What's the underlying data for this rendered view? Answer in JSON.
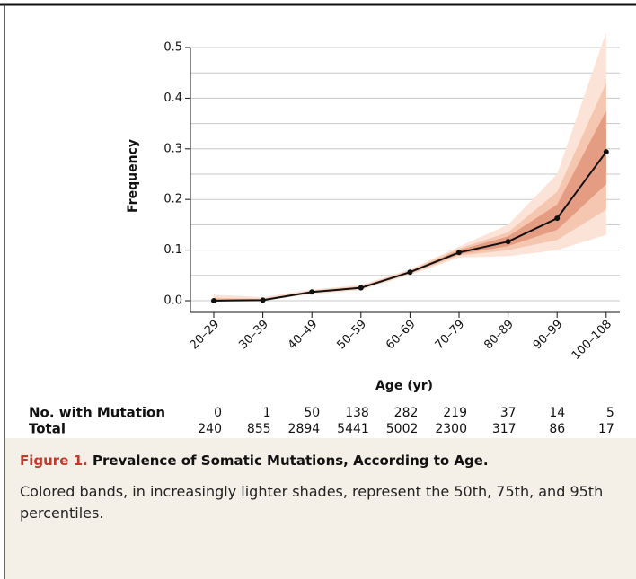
{
  "chart_data": {
    "type": "line",
    "y_label": "Frequency",
    "x_label": "Age (yr)",
    "categories": [
      "20–29",
      "30–39",
      "40–49",
      "50–59",
      "60–69",
      "70–79",
      "80–89",
      "90–99",
      "100–108"
    ],
    "values": [
      0,
      0.0012,
      0.0173,
      0.0254,
      0.0564,
      0.0952,
      0.1167,
      0.1628,
      0.294
    ],
    "color": "#111111",
    "bands": [
      {
        "color": "#fbe3d8",
        "upper": [
          0.012,
          0.007,
          0.022,
          0.031,
          0.062,
          0.107,
          0.15,
          0.25,
          0.53
        ],
        "lower": [
          0,
          0,
          0.013,
          0.021,
          0.051,
          0.085,
          0.088,
          0.1,
          0.13
        ]
      },
      {
        "color": "#f5c6b0",
        "upper": [
          0.006,
          0.004,
          0.02,
          0.029,
          0.06,
          0.103,
          0.135,
          0.215,
          0.43
        ],
        "lower": [
          0,
          0,
          0.015,
          0.023,
          0.053,
          0.089,
          0.1,
          0.12,
          0.18
        ]
      },
      {
        "color": "#e49c82",
        "upper": [
          0.003,
          0.003,
          0.019,
          0.027,
          0.058,
          0.1,
          0.127,
          0.19,
          0.375
        ],
        "lower": [
          0,
          0,
          0.016,
          0.024,
          0.055,
          0.092,
          0.108,
          0.14,
          0.23
        ]
      }
    ],
    "ylim": [
      0,
      0.5
    ],
    "yticks": [
      {
        "value": 0,
        "label": "0.0"
      },
      0.1,
      0.2,
      0.3,
      0.4,
      0.5
    ],
    "minor_yticks": [
      0.05,
      0.15,
      0.25,
      0.35,
      0.45
    ],
    "grid": true,
    "table": [
      {
        "label": "No. with Mutation",
        "values": [
          0,
          1,
          50,
          138,
          282,
          219,
          37,
          14,
          5
        ]
      },
      {
        "label": "Total",
        "values": [
          240,
          855,
          2894,
          5441,
          5002,
          2300,
          317,
          86,
          17
        ]
      }
    ]
  },
  "caption": {
    "figure": "Figure 1.",
    "title": "Prevalence of Somatic Mutations, According to Age.",
    "body": "Colored bands, in increasingly lighter shades, represent the 50th, 75th, and 95th percentiles."
  }
}
